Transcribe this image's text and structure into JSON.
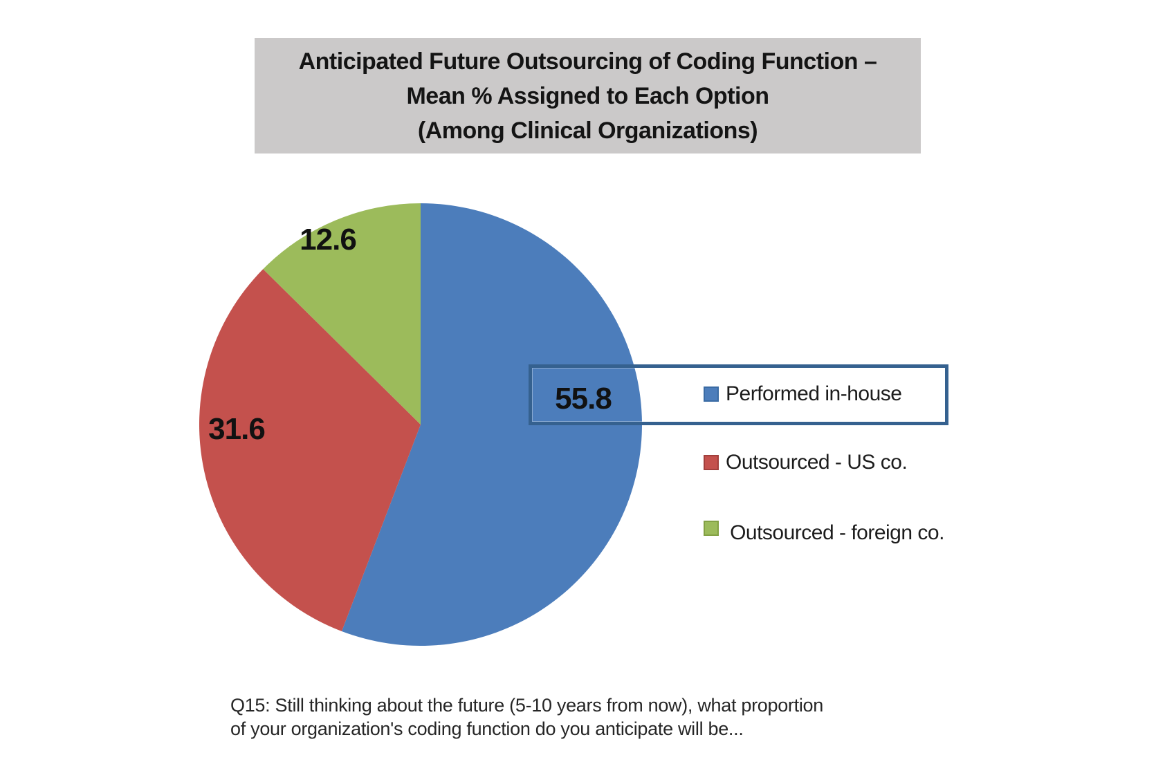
{
  "page": {
    "background": "#ffffff"
  },
  "title": {
    "text": "Anticipated Future Outsourcing of Coding Function –\nMean % Assigned to Each Option\n(Among Clinical Organizations)",
    "bg_color": "#CBC9C9"
  },
  "chart_data": {
    "type": "pie",
    "title": "Anticipated Future Outsourcing of Coding Function – Mean % Assigned to Each Option (Among Clinical Organizations)",
    "start_angle": "12-oclock",
    "direction": "clockwise",
    "legend_position": "right",
    "series": [
      {
        "label": "Performed in-house",
        "value": 55.8,
        "value_label": "55.8",
        "color": "#4C7DBB",
        "swatch_border": "#3A6BA4"
      },
      {
        "label": "Outsourced - US co.",
        "value": 31.6,
        "value_label": "31.6",
        "color": "#C4514D",
        "swatch_border": "#A23F3C"
      },
      {
        "label": "Outsourced - foreign co.",
        "value": 12.6,
        "value_label": "12.6",
        "color": "#9CBB5B",
        "swatch_border": "#83A144"
      }
    ],
    "callout": {
      "highlighted_series": "Performed in-house",
      "border_color": "#35618F"
    }
  },
  "footnote": {
    "text": "Q15: Still thinking about the future (5-10 years from now), what proportion\nof your organization's coding function do you anticipate will be..."
  }
}
